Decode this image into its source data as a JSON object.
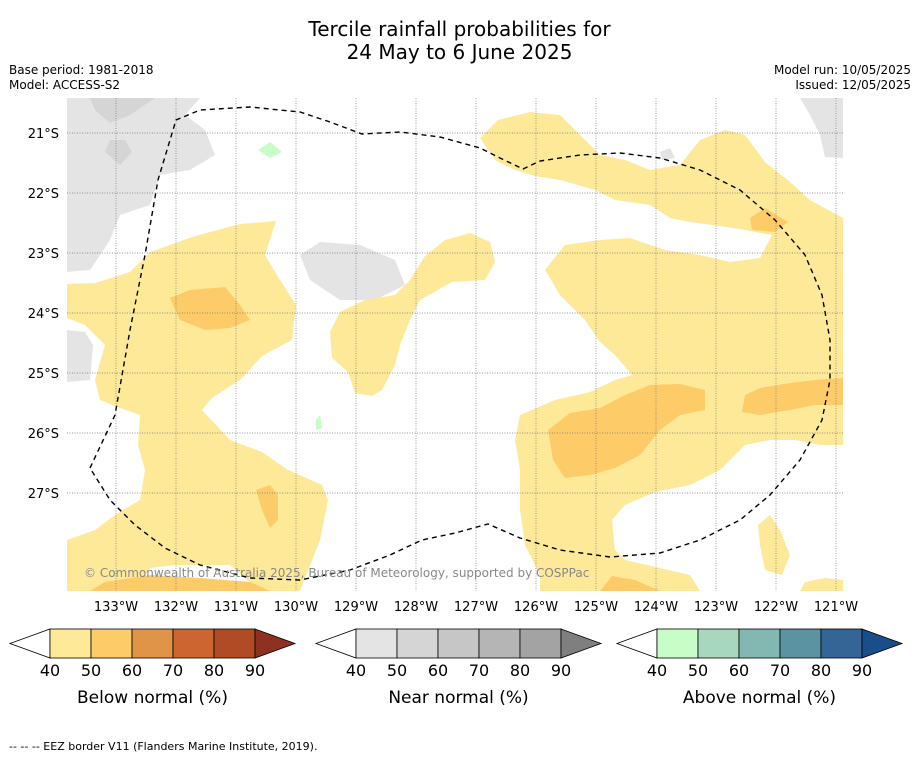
{
  "title_line1": "Tercile rainfall probabilities for",
  "title_line2": "24 May to 6 June 2025",
  "meta": {
    "base_period": "Base period: 1981-2018",
    "model": "Model: ACCESS-S2",
    "model_run": "Model run: 10/05/2025",
    "issued": "Issued: 12/05/2025"
  },
  "map": {
    "lat_labels": [
      "21°S",
      "22°S",
      "23°S",
      "24°S",
      "25°S",
      "26°S",
      "27°S"
    ],
    "lon_labels": [
      "133°W",
      "132°W",
      "131°W",
      "130°W",
      "129°W",
      "128°W",
      "127°W",
      "126°W",
      "125°W",
      "124°W",
      "123°W",
      "122°W",
      "121°W"
    ],
    "copyright": "© Commonwealth of Australia 2025, Bureau of Meteorology, supported by COSPPac",
    "colors": {
      "below_40": "#fee999",
      "below_50": "#fdcb67",
      "near_40": "#e4e4e4",
      "above_40": "#c7fdc7"
    }
  },
  "colorbars": [
    {
      "title": "Below normal (%)",
      "ticks": [
        "40",
        "50",
        "60",
        "70",
        "80",
        "90"
      ],
      "colors": [
        "#fee999",
        "#fdcb67",
        "#e09448",
        "#cc6530",
        "#b04b26",
        "#8f3120"
      ]
    },
    {
      "title": "Near normal (%)",
      "ticks": [
        "40",
        "50",
        "60",
        "70",
        "80",
        "90"
      ],
      "colors": [
        "#e4e4e4",
        "#d5d5d5",
        "#c6c6c6",
        "#b5b5b5",
        "#a3a3a3",
        "#7f7f7f"
      ]
    },
    {
      "title": "Above normal (%)",
      "ticks": [
        "40",
        "50",
        "60",
        "70",
        "80",
        "90"
      ],
      "colors": [
        "#c7fdc7",
        "#a7d8bd",
        "#83b7b2",
        "#5b93a3",
        "#346596",
        "#1a4e8a"
      ]
    }
  ],
  "footer": "--  --  -- EEZ border V11 (Flanders Marine Institute, 2019)."
}
